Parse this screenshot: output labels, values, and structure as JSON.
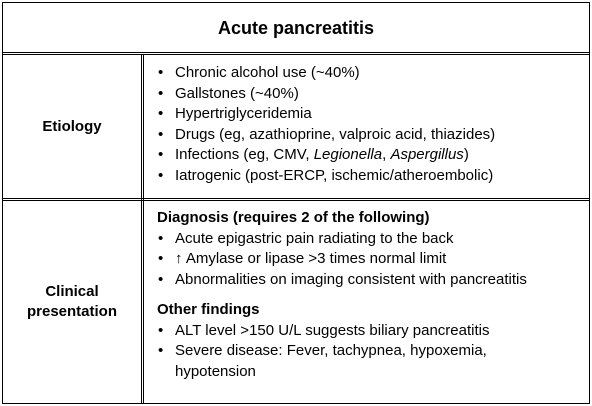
{
  "title": "Acute pancreatitis",
  "etiology": {
    "label": "Etiology",
    "items": [
      "Chronic alcohol use (~40%)",
      "Gallstones (~40%)",
      "Hypertriglyceridemia",
      "Drugs (eg, azathioprine, valproic acid, thiazides)",
      {
        "pre": "Infections (eg, CMV, ",
        "em1": "Legionella",
        "mid": ", ",
        "em2": "Aspergillus",
        "post": ")"
      },
      "Iatrogenic (post-ERCP, ischemic/atheroembolic)"
    ]
  },
  "clinical": {
    "label_line1": "Clinical",
    "label_line2": "presentation",
    "diagnosis_heading": "Diagnosis (requires 2 of the following)",
    "diagnosis_items": [
      "Acute epigastric pain radiating to the back",
      "↑ Amylase or lipase >3 times normal limit",
      "Abnormalities on imaging consistent with pancreatitis"
    ],
    "other_heading": "Other findings",
    "other_items": [
      "ALT level >150 U/L suggests biliary pancreatitis",
      "Severe disease: Fever, tachypnea, hypoxemia, hypotension"
    ]
  },
  "bullet": "•"
}
